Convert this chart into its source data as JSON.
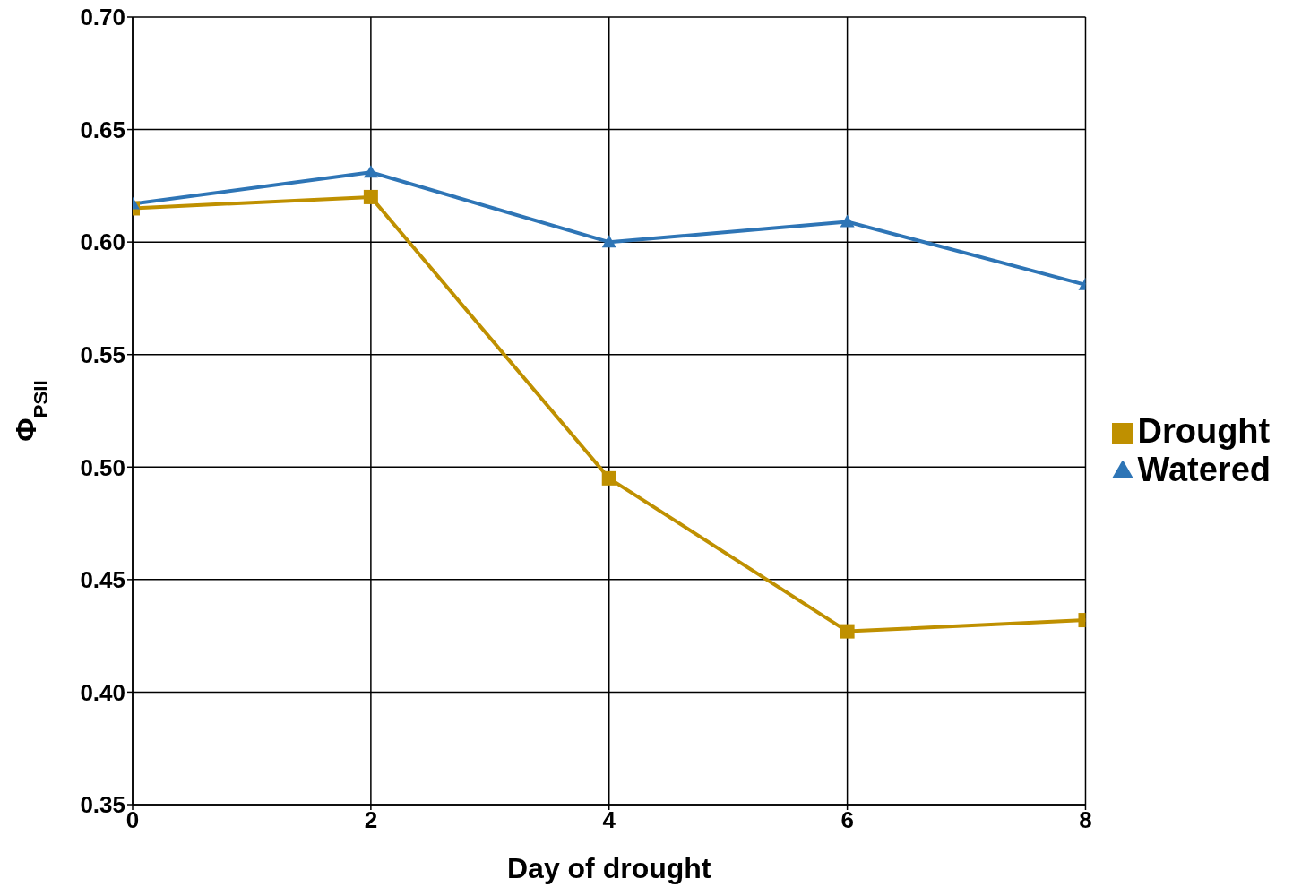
{
  "chart_data": {
    "type": "line",
    "xlabel": "Day of drought",
    "ylabel": "Φ$_{PSII}$",
    "x": [
      0,
      2,
      4,
      6,
      8
    ],
    "series": [
      {
        "name": "Drought",
        "color": "#bf9000",
        "marker": "square",
        "values": [
          0.615,
          0.62,
          0.495,
          0.427,
          0.432
        ]
      },
      {
        "name": "Watered",
        "color": "#2e75b6",
        "marker": "triangle",
        "values": [
          0.617,
          0.631,
          0.6,
          0.609,
          0.581
        ]
      }
    ],
    "xlim": [
      0,
      8
    ],
    "xticks": [
      0,
      2,
      4,
      6,
      8
    ],
    "ylim": [
      0.35,
      0.7
    ],
    "yticks": [
      0.35,
      {
        "value": 0.4,
        "label": "0.40"
      },
      0.45,
      {
        "value": 0.5,
        "label": "0.50"
      },
      0.55,
      {
        "value": 0.6,
        "label": "0.60"
      },
      0.65,
      {
        "value": 0.7,
        "label": "0.70"
      }
    ],
    "grid": true,
    "legend": "right",
    "line_style": "solid"
  }
}
